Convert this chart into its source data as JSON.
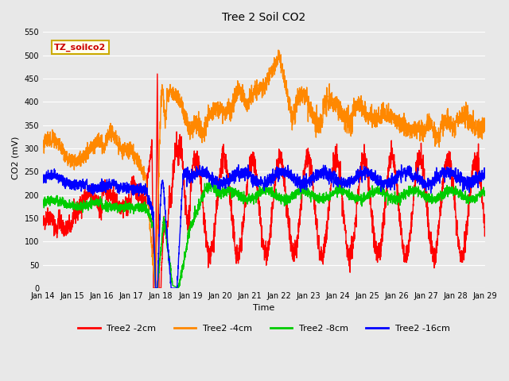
{
  "title": "Tree 2 Soil CO2",
  "xlabel": "Time",
  "ylabel": "CO2 (mV)",
  "ylim": [
    0,
    560
  ],
  "yticks": [
    0,
    50,
    100,
    150,
    200,
    250,
    300,
    350,
    400,
    450,
    500,
    550
  ],
  "plot_bg_color": "#e8e8e8",
  "legend_label": "TZ_soilco2",
  "legend_box_color": "#fffff0",
  "legend_box_edge": "#ccaa00",
  "series_colors": [
    "#ff0000",
    "#ff8800",
    "#00cc00",
    "#0000ff"
  ],
  "series_labels": [
    "Tree2 -2cm",
    "Tree2 -4cm",
    "Tree2 -8cm",
    "Tree2 -16cm"
  ],
  "line_width": 1.0,
  "x_tick_labels": [
    "Jan 14",
    "Jan 15",
    "Jan 16",
    "Jan 17",
    "Jan 18",
    "Jan 19",
    "Jan 20",
    "Jan 21",
    "Jan 22",
    "Jan 23",
    "Jan 24",
    "Jan 25",
    "Jan 26",
    "Jan 27",
    "Jan 28",
    "Jan 29"
  ]
}
